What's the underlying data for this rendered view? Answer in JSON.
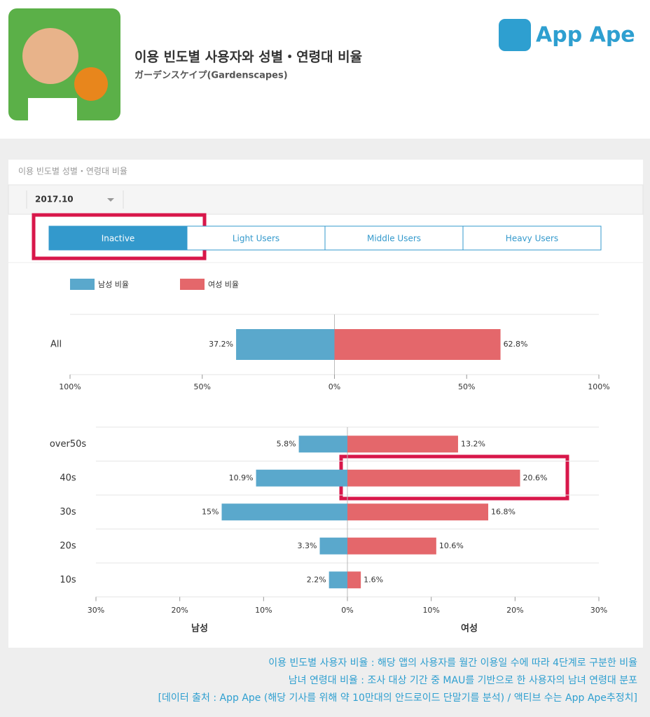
{
  "header": {
    "title": "이용 빈도별 사용자와 성별・연령대 비율",
    "subtitle": "ガーデンスケイプ(Gardenscapes)",
    "brand": "App Ape"
  },
  "panel": {
    "title": "이용 빈도별 성별・연령대 비율",
    "date": "2017.10",
    "tabs": [
      "Inactive",
      "Light Users",
      "Middle Users",
      "Heavy Users"
    ]
  },
  "chart_data": [
    {
      "type": "bar",
      "categories": [
        "All"
      ],
      "series": [
        {
          "name": "남성 비율",
          "color": "#5aa8cc",
          "values": [
            37.2
          ],
          "value_labels": [
            "37.2%"
          ]
        },
        {
          "name": "여성 비율",
          "color": "#e4676b",
          "values": [
            62.8
          ],
          "value_labels": [
            "62.8%"
          ]
        }
      ],
      "xlim": [
        -100,
        100
      ],
      "xticks": [
        {
          "value": -100,
          "label": "100%"
        },
        {
          "value": -50,
          "label": "50%"
        },
        {
          "value": 0,
          "label": "0%"
        },
        {
          "value": 50,
          "label": "50%"
        },
        {
          "value": 100,
          "label": "100%"
        }
      ]
    },
    {
      "type": "bar",
      "categories": [
        "over50s",
        "40s",
        "30s",
        "20s",
        "10s"
      ],
      "series": [
        {
          "color": "#5aa8cc",
          "values": [
            5.8,
            10.9,
            15,
            3.3,
            2.2
          ],
          "value_labels": [
            "5.8%",
            "10.9%",
            "15%",
            "3.3%",
            "2.2%"
          ]
        },
        {
          "color": "#e4676b",
          "values": [
            13.2,
            20.6,
            16.8,
            10.6,
            1.6
          ],
          "value_labels": [
            "13.2%",
            "20.6%",
            "16.8%",
            "10.6%",
            "1.6%"
          ]
        }
      ],
      "xlim": [
        -30,
        30
      ],
      "xticks": [
        {
          "value": -30,
          "label": "30%"
        },
        {
          "value": -20,
          "label": "20%"
        },
        {
          "value": -10,
          "label": "10%"
        },
        {
          "value": 0,
          "label": "0%"
        },
        {
          "value": 10,
          "label": "10%"
        },
        {
          "value": 20,
          "label": "20%"
        },
        {
          "value": 30,
          "label": "30%"
        }
      ],
      "axis_labels": [
        "남성",
        "여성"
      ]
    }
  ],
  "footer": [
    "이용 빈도별 사용자 비율 : 해당 앱의 사용자를 월간 이용일 수에 따라 4단계로 구분한 비율",
    "남녀 연령대 비율 : 조사 대상 기간 중 MAU를 기반으로 한 사용자의 남녀 연령대 분포",
    "[데이터 출처 : App Ape (해당 기사를 위해 약 10만대의 안드로이드 단말기를 분석) / 액티브 수는 App Ape추정치]"
  ]
}
